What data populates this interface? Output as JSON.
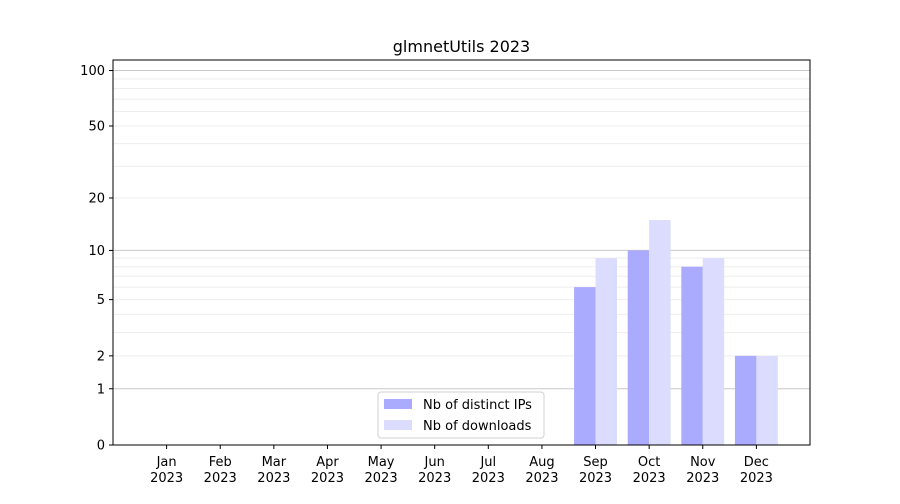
{
  "chart_data": {
    "type": "bar",
    "title": "glmnetUtils 2023",
    "xlabel": "",
    "ylabel": "",
    "yscale": "log(1+y)",
    "ylim": [
      0,
      114
    ],
    "yticks": [
      0,
      1,
      2,
      5,
      10,
      20,
      50,
      100
    ],
    "grid": true,
    "legend_position": "lower-center",
    "categories": [
      "Jan\n2023",
      "Feb\n2023",
      "Mar\n2023",
      "Apr\n2023",
      "May\n2023",
      "Jun\n2023",
      "Jul\n2023",
      "Aug\n2023",
      "Sep\n2023",
      "Oct\n2023",
      "Nov\n2023",
      "Dec\n2023"
    ],
    "series": [
      {
        "name": "Nb of distinct IPs",
        "color": "#aaaaff",
        "values": [
          0,
          0,
          0,
          0,
          0,
          0,
          0,
          0,
          6,
          10,
          8,
          2
        ]
      },
      {
        "name": "Nb of downloads",
        "color": "#dcdcff",
        "values": [
          0,
          0,
          0,
          0,
          0,
          0,
          0,
          0,
          9,
          15,
          9,
          2
        ]
      }
    ]
  }
}
